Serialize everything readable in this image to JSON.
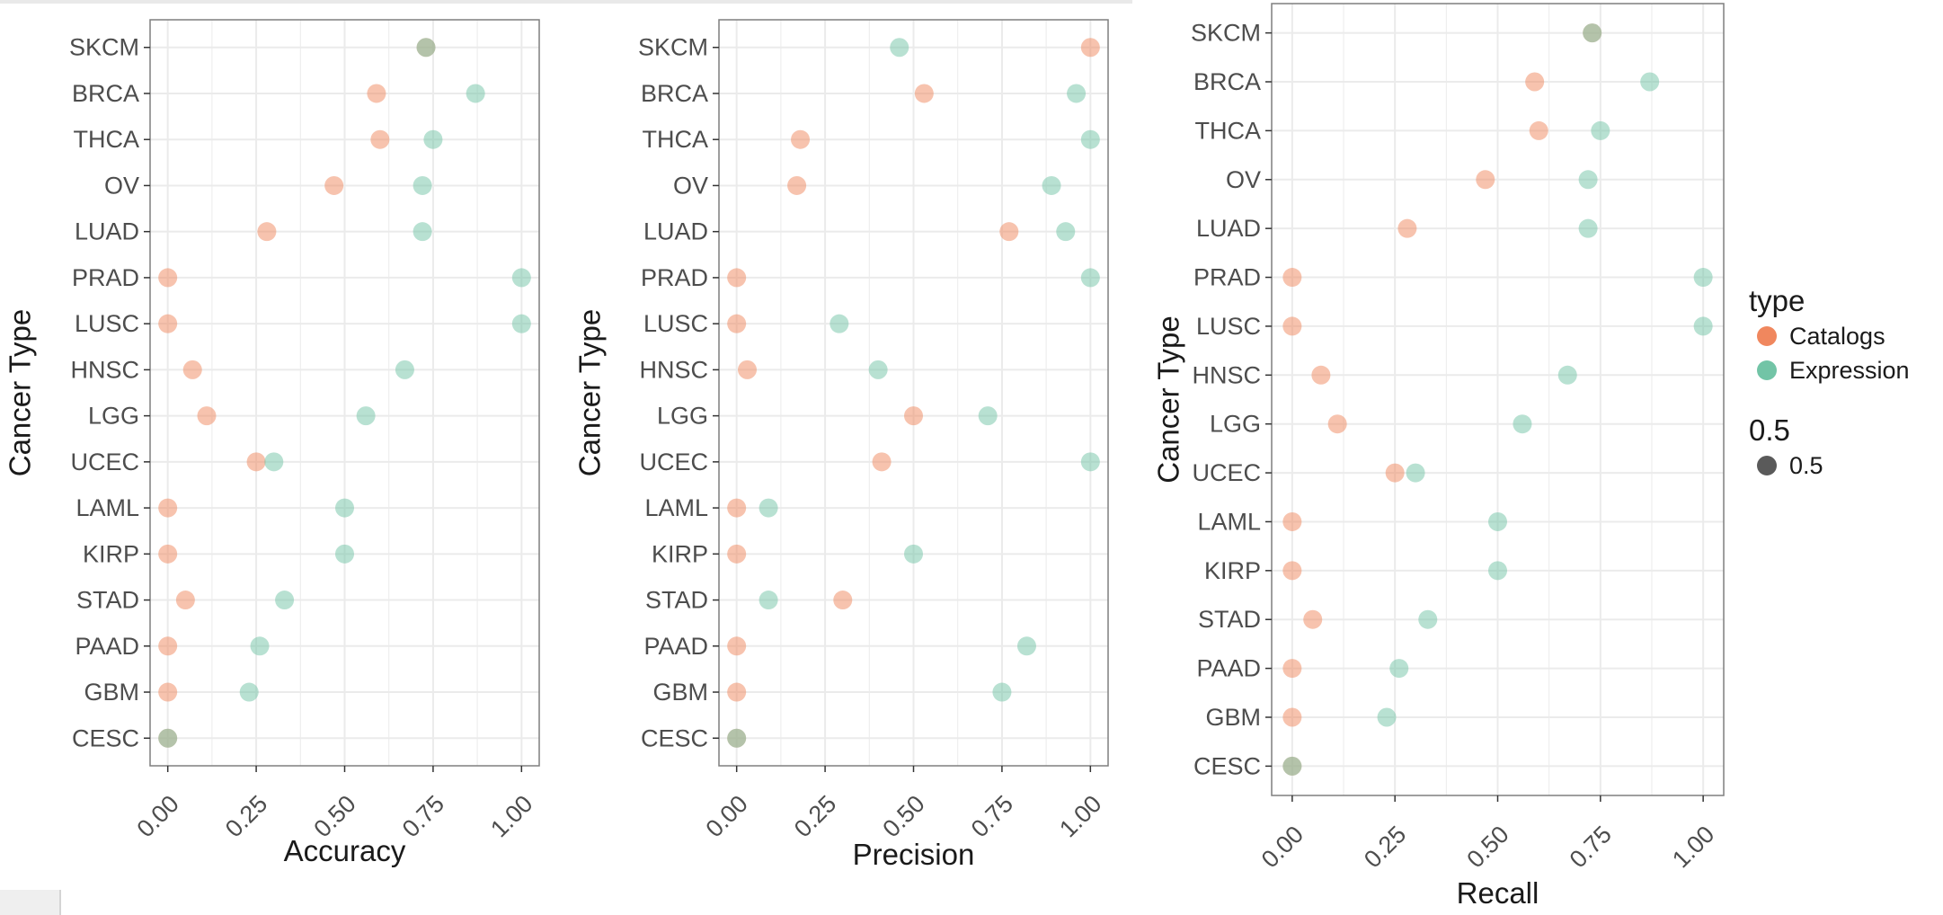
{
  "chart_data": [
    {
      "type": "scatter",
      "xlabel": "Accuracy",
      "ylabel": "Cancer Type",
      "xlim": [
        -0.05,
        1.05
      ],
      "xticks": [
        "0.00",
        "0.25",
        "0.50",
        "0.75",
        "1.00"
      ],
      "xtick_values": [
        0,
        0.25,
        0.5,
        0.75,
        1.0
      ],
      "categories": [
        "SKCM",
        "BRCA",
        "THCA",
        "OV",
        "LUAD",
        "PRAD",
        "LUSC",
        "HNSC",
        "LGG",
        "UCEC",
        "LAML",
        "KIRP",
        "STAD",
        "PAAD",
        "GBM",
        "CESC"
      ],
      "series": [
        {
          "name": "Catalogs",
          "values": [
            0.73,
            0.59,
            0.6,
            0.47,
            0.28,
            0.0,
            0.0,
            0.07,
            0.11,
            0.25,
            0.0,
            0.0,
            0.05,
            0.0,
            0.0,
            0.0
          ]
        },
        {
          "name": "Expression",
          "values": [
            0.73,
            0.87,
            0.75,
            0.72,
            0.72,
            1.0,
            1.0,
            0.67,
            0.56,
            0.3,
            0.5,
            0.5,
            0.33,
            0.26,
            0.23,
            0.0
          ]
        }
      ],
      "grid": true
    },
    {
      "type": "scatter",
      "xlabel": "Precision",
      "ylabel": "Cancer Type",
      "xlim": [
        -0.05,
        1.05
      ],
      "xticks": [
        "0.00",
        "0.25",
        "0.50",
        "0.75",
        "1.00"
      ],
      "xtick_values": [
        0,
        0.25,
        0.5,
        0.75,
        1.0
      ],
      "categories": [
        "SKCM",
        "BRCA",
        "THCA",
        "OV",
        "LUAD",
        "PRAD",
        "LUSC",
        "HNSC",
        "LGG",
        "UCEC",
        "LAML",
        "KIRP",
        "STAD",
        "PAAD",
        "GBM",
        "CESC"
      ],
      "series": [
        {
          "name": "Catalogs",
          "values": [
            1.0,
            0.53,
            0.18,
            0.17,
            0.77,
            0.0,
            0.0,
            0.03,
            0.5,
            0.41,
            0.0,
            0.0,
            0.3,
            0.0,
            0.0,
            0.0
          ]
        },
        {
          "name": "Expression",
          "values": [
            0.46,
            0.96,
            1.0,
            0.89,
            0.93,
            1.0,
            0.29,
            0.4,
            0.71,
            1.0,
            0.09,
            0.5,
            0.09,
            0.82,
            0.75,
            0.0
          ]
        }
      ],
      "grid": true
    },
    {
      "type": "scatter",
      "xlabel": "Recall",
      "ylabel": "Cancer Type",
      "xlim": [
        -0.05,
        1.05
      ],
      "xticks": [
        "0.00",
        "0.25",
        "0.50",
        "0.75",
        "1.00"
      ],
      "xtick_values": [
        0,
        0.25,
        0.5,
        0.75,
        1.0
      ],
      "categories": [
        "SKCM",
        "BRCA",
        "THCA",
        "OV",
        "LUAD",
        "PRAD",
        "LUSC",
        "HNSC",
        "LGG",
        "UCEC",
        "LAML",
        "KIRP",
        "STAD",
        "PAAD",
        "GBM",
        "CESC"
      ],
      "series": [
        {
          "name": "Catalogs",
          "values": [
            0.73,
            0.59,
            0.6,
            0.47,
            0.28,
            0.0,
            0.0,
            0.07,
            0.11,
            0.25,
            0.0,
            0.0,
            0.05,
            0.0,
            0.0,
            0.0
          ]
        },
        {
          "name": "Expression",
          "values": [
            0.73,
            0.87,
            0.75,
            0.72,
            0.72,
            1.0,
            1.0,
            0.67,
            0.56,
            0.3,
            0.5,
            0.5,
            0.33,
            0.26,
            0.23,
            0.0
          ]
        }
      ],
      "grid": true
    }
  ],
  "legend": {
    "title": "type",
    "items": [
      {
        "label": "Catalogs",
        "color": "#f0875e"
      },
      {
        "label": "Expression",
        "color": "#72c4a6"
      }
    ],
    "size_title": "0.5",
    "size_label": "0.5",
    "size_color": "#5a5a5a"
  },
  "style": {
    "point_opacity": 0.5,
    "grid_color": "#ebebeb",
    "border_color": "#7f7f7f",
    "text_color": "#4d4d4d",
    "title_color": "#1a1a1a"
  }
}
